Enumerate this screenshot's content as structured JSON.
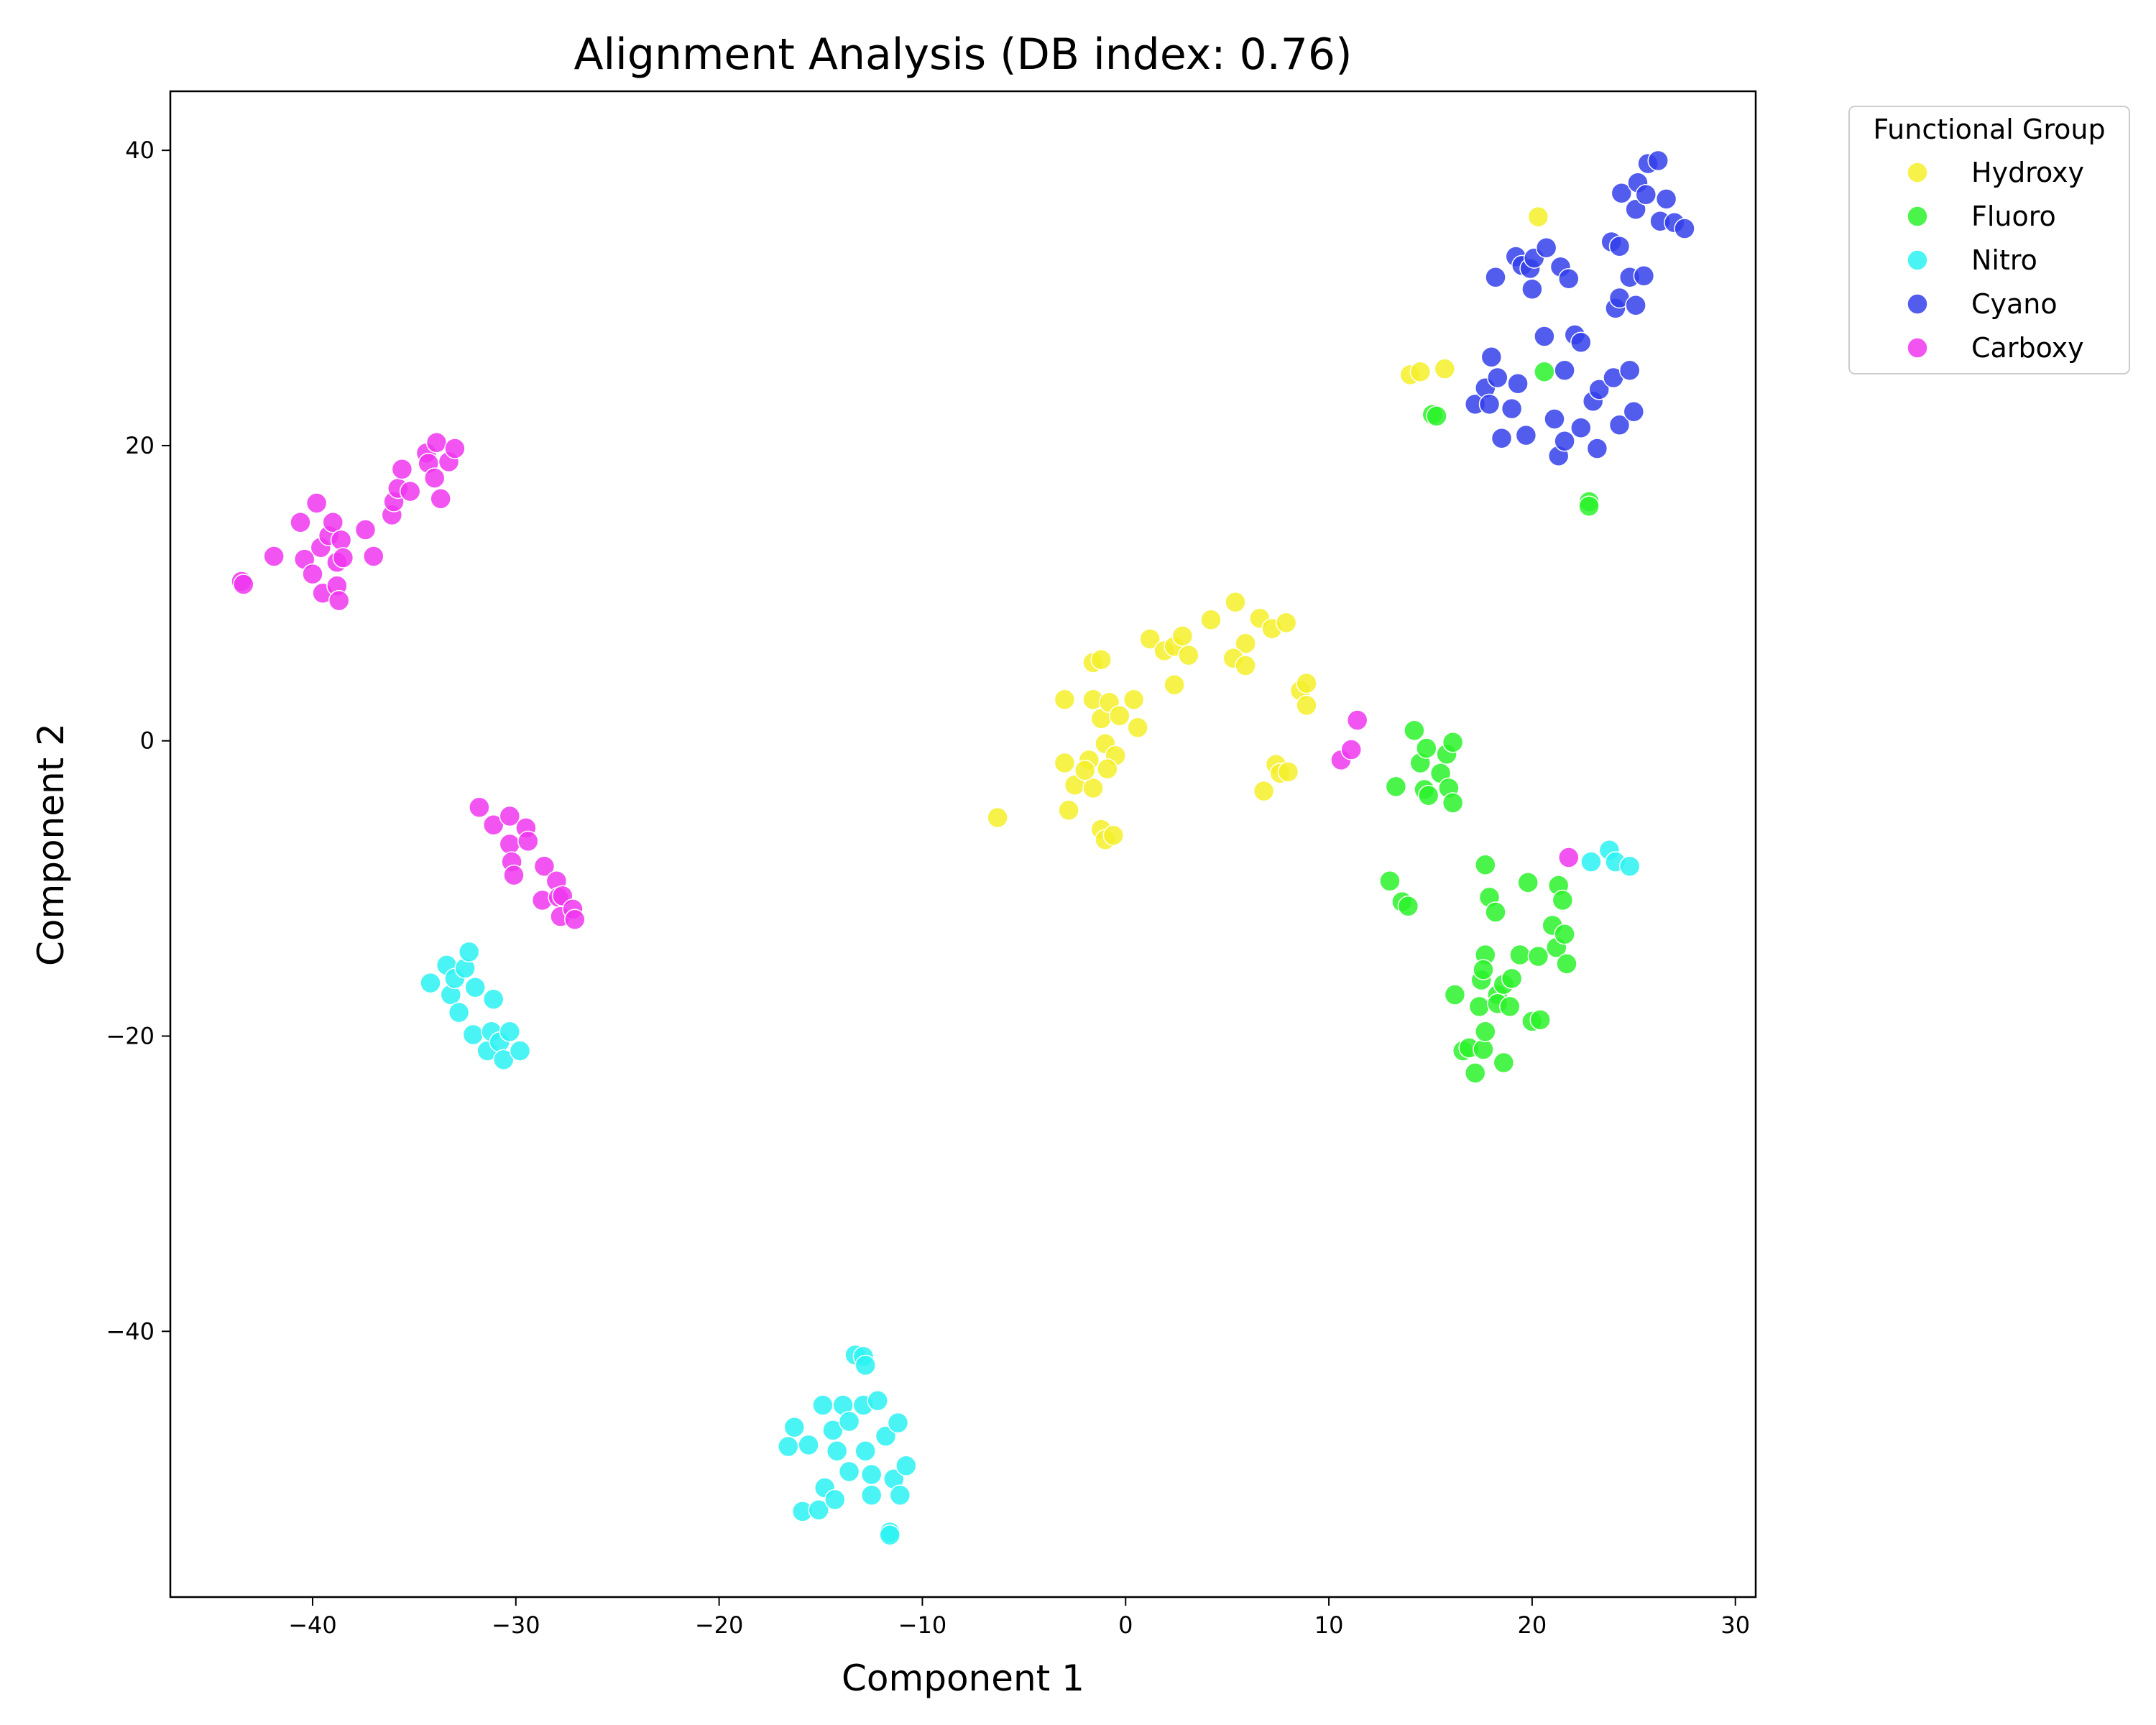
{
  "chart_data": {
    "type": "scatter",
    "title": "Alignment Analysis (DB index: 0.76)",
    "xlabel": "Component 1",
    "ylabel": "Component 2",
    "xlim": [
      -47,
      31
    ],
    "ylim": [
      -58,
      44
    ],
    "xticks": [
      -40,
      -30,
      -20,
      -10,
      0,
      10,
      20,
      30
    ],
    "yticks": [
      -40,
      -20,
      0,
      20,
      40
    ],
    "xtick_labels": [
      "−40",
      "−30",
      "−20",
      "−10",
      "0",
      "10",
      "20",
      "30"
    ],
    "ytick_labels": [
      "−40",
      "−20",
      "0",
      "20",
      "40"
    ],
    "grid": false,
    "legend": {
      "title": "Functional Group",
      "placement": "outside-top-right"
    },
    "series": [
      {
        "name": "Hydroxy",
        "color": "#f5f02a",
        "points": [
          [
            -6.3,
            -5.2
          ],
          [
            -3,
            2.8
          ],
          [
            -3,
            -1.5
          ],
          [
            -2.8,
            -4.7
          ],
          [
            -2.5,
            -3
          ],
          [
            -1.8,
            -1.3
          ],
          [
            -1.6,
            -3.2
          ],
          [
            -2.0,
            -2.0
          ],
          [
            -1.6,
            5.3
          ],
          [
            -1.2,
            5.5
          ],
          [
            -1.6,
            2.8
          ],
          [
            -1.2,
            1.5
          ],
          [
            -0.8,
            2.6
          ],
          [
            -1.0,
            -0.2
          ],
          [
            -0.5,
            -1.0
          ],
          [
            -0.9,
            -1.9
          ],
          [
            -1.2,
            -6.0
          ],
          [
            -1.0,
            -6.7
          ],
          [
            -0.6,
            -6.4
          ],
          [
            -0.3,
            1.7
          ],
          [
            0.4,
            2.8
          ],
          [
            0.6,
            0.9
          ],
          [
            1.2,
            6.9
          ],
          [
            1.9,
            6.1
          ],
          [
            2.4,
            6.4
          ],
          [
            2.8,
            7.1
          ],
          [
            2.4,
            3.8
          ],
          [
            3.1,
            5.8
          ],
          [
            4.2,
            8.2
          ],
          [
            5.4,
            9.4
          ],
          [
            5.9,
            6.6
          ],
          [
            5.3,
            5.6
          ],
          [
            5.9,
            5.1
          ],
          [
            6.6,
            8.3
          ],
          [
            6.8,
            -3.4
          ],
          [
            7.2,
            7.6
          ],
          [
            7.4,
            -1.6
          ],
          [
            7.6,
            -2.2
          ],
          [
            7.9,
            8.0
          ],
          [
            8.0,
            -2.1
          ],
          [
            8.6,
            3.4
          ],
          [
            8.9,
            3.9
          ],
          [
            8.9,
            2.4
          ],
          [
            14.0,
            24.8
          ],
          [
            14.5,
            25.0
          ],
          [
            15.7,
            25.2
          ],
          [
            20.3,
            35.5
          ]
        ]
      },
      {
        "name": "Fluoro",
        "color": "#2cf22c",
        "points": [
          [
            13.0,
            -9.5
          ],
          [
            13.3,
            -3.1
          ],
          [
            13.6,
            -10.9
          ],
          [
            13.9,
            -11.2
          ],
          [
            14.2,
            0.7
          ],
          [
            14.5,
            -1.5
          ],
          [
            14.7,
            -3.3
          ],
          [
            14.8,
            -0.5
          ],
          [
            14.9,
            -3.7
          ],
          [
            15.1,
            22.1
          ],
          [
            15.3,
            22.0
          ],
          [
            15.5,
            -2.2
          ],
          [
            15.8,
            -0.9
          ],
          [
            15.9,
            -3.2
          ],
          [
            16.1,
            -4.2
          ],
          [
            16.1,
            -0.1
          ],
          [
            16.2,
            -17.2
          ],
          [
            16.6,
            -21.0
          ],
          [
            16.9,
            -20.8
          ],
          [
            17.2,
            -22.5
          ],
          [
            17.4,
            -18.0
          ],
          [
            17.5,
            -16.2
          ],
          [
            17.6,
            -20.9
          ],
          [
            17.7,
            -19.7
          ],
          [
            17.7,
            -14.5
          ],
          [
            17.7,
            -8.4
          ],
          [
            17.9,
            -10.6
          ],
          [
            17.6,
            -15.5
          ],
          [
            18.2,
            -11.6
          ],
          [
            18.3,
            -17.2
          ],
          [
            18.3,
            -17.8
          ],
          [
            18.6,
            -16.5
          ],
          [
            18.6,
            -21.8
          ],
          [
            18.9,
            -18.0
          ],
          [
            19.0,
            -16.1
          ],
          [
            19.4,
            -14.5
          ],
          [
            19.8,
            -9.6
          ],
          [
            20.0,
            -19.0
          ],
          [
            20.3,
            -14.6
          ],
          [
            20.4,
            -18.9
          ],
          [
            20.6,
            25.0
          ],
          [
            21.0,
            -12.5
          ],
          [
            21.2,
            -14.0
          ],
          [
            21.3,
            -9.8
          ],
          [
            21.5,
            -10.8
          ],
          [
            21.6,
            -13.1
          ],
          [
            21.7,
            -15.1
          ],
          [
            22.8,
            16.2
          ],
          [
            22.8,
            15.9
          ]
        ]
      },
      {
        "name": "Nitro",
        "color": "#2cf2f2",
        "points": [
          [
            -34.2,
            -16.4
          ],
          [
            -33.4,
            -15.2
          ],
          [
            -33.2,
            -17.2
          ],
          [
            -33.0,
            -16.1
          ],
          [
            -32.8,
            -18.4
          ],
          [
            -32.5,
            -15.4
          ],
          [
            -32.3,
            -14.3
          ],
          [
            -32.1,
            -19.9
          ],
          [
            -32.0,
            -16.7
          ],
          [
            -31.4,
            -21.0
          ],
          [
            -31.1,
            -17.5
          ],
          [
            -31.2,
            -19.7
          ],
          [
            -30.8,
            -20.4
          ],
          [
            -30.6,
            -21.6
          ],
          [
            -30.3,
            -19.7
          ],
          [
            -29.8,
            -21.0
          ],
          [
            -16.6,
            -47.8
          ],
          [
            -16.3,
            -46.5
          ],
          [
            -15.9,
            -52.2
          ],
          [
            -15.6,
            -47.7
          ],
          [
            -15.1,
            -52.1
          ],
          [
            -14.9,
            -45.0
          ],
          [
            -14.8,
            -50.6
          ],
          [
            -14.4,
            -46.7
          ],
          [
            -14.2,
            -48.1
          ],
          [
            -14.3,
            -51.4
          ],
          [
            -13.9,
            -45.0
          ],
          [
            -13.6,
            -49.5
          ],
          [
            -13.6,
            -46.1
          ],
          [
            -13.3,
            -41.6
          ],
          [
            -12.9,
            -45.0
          ],
          [
            -12.9,
            -41.7
          ],
          [
            -12.8,
            -42.3
          ],
          [
            -12.8,
            -48.1
          ],
          [
            -12.5,
            -49.7
          ],
          [
            -12.5,
            -51.1
          ],
          [
            -12.2,
            -44.7
          ],
          [
            -11.8,
            -47.1
          ],
          [
            -11.6,
            -53.6
          ],
          [
            -11.6,
            -53.8
          ],
          [
            -11.4,
            -50.0
          ],
          [
            -11.2,
            -46.2
          ],
          [
            -11.1,
            -51.1
          ],
          [
            -10.8,
            -49.1
          ],
          [
            22.9,
            -8.2
          ],
          [
            23.8,
            -7.4
          ],
          [
            24.1,
            -8.2
          ],
          [
            24.8,
            -8.5
          ]
        ]
      },
      {
        "name": "Cyano",
        "color": "#3440ea",
        "points": [
          [
            17.2,
            22.8
          ],
          [
            17.7,
            23.9
          ],
          [
            17.9,
            22.8
          ],
          [
            18.0,
            26.0
          ],
          [
            18.2,
            31.4
          ],
          [
            18.3,
            24.6
          ],
          [
            18.5,
            20.5
          ],
          [
            19.0,
            22.5
          ],
          [
            19.2,
            32.8
          ],
          [
            19.3,
            24.2
          ],
          [
            19.5,
            32.2
          ],
          [
            19.7,
            20.7
          ],
          [
            19.9,
            32.0
          ],
          [
            20.0,
            30.6
          ],
          [
            20.1,
            32.7
          ],
          [
            20.6,
            27.4
          ],
          [
            20.7,
            33.4
          ],
          [
            21.1,
            21.8
          ],
          [
            21.3,
            19.3
          ],
          [
            21.4,
            32.1
          ],
          [
            21.6,
            20.3
          ],
          [
            21.6,
            25.1
          ],
          [
            21.8,
            31.3
          ],
          [
            22.1,
            27.5
          ],
          [
            22.4,
            27.0
          ],
          [
            22.4,
            21.2
          ],
          [
            23.0,
            23.0
          ],
          [
            23.2,
            19.8
          ],
          [
            23.3,
            23.8
          ],
          [
            23.9,
            33.8
          ],
          [
            24.0,
            24.6
          ],
          [
            24.1,
            29.3
          ],
          [
            24.3,
            33.5
          ],
          [
            24.3,
            21.4
          ],
          [
            24.3,
            30.0
          ],
          [
            24.4,
            37.1
          ],
          [
            24.8,
            31.4
          ],
          [
            24.8,
            25.1
          ],
          [
            25.0,
            22.3
          ],
          [
            25.1,
            29.5
          ],
          [
            25.1,
            36.0
          ],
          [
            25.2,
            37.8
          ],
          [
            25.5,
            31.5
          ],
          [
            25.6,
            37.0
          ],
          [
            25.7,
            39.1
          ],
          [
            26.2,
            39.3
          ],
          [
            26.3,
            35.2
          ],
          [
            26.6,
            36.7
          ],
          [
            27.0,
            35.1
          ],
          [
            27.5,
            34.7
          ]
        ]
      },
      {
        "name": "Carboxy",
        "color": "#ef36ef",
        "points": [
          [
            -43.5,
            10.8
          ],
          [
            -43.4,
            10.6
          ],
          [
            -41.9,
            12.5
          ],
          [
            -40.6,
            14.8
          ],
          [
            -40.4,
            12.3
          ],
          [
            -40.0,
            11.3
          ],
          [
            -39.8,
            16.1
          ],
          [
            -39.6,
            13.1
          ],
          [
            -39.5,
            10.0
          ],
          [
            -39.2,
            13.9
          ],
          [
            -39.0,
            14.8
          ],
          [
            -38.8,
            12.1
          ],
          [
            -38.8,
            10.5
          ],
          [
            -38.7,
            9.5
          ],
          [
            -38.6,
            13.6
          ],
          [
            -38.5,
            12.4
          ],
          [
            -37.4,
            14.3
          ],
          [
            -37.0,
            12.5
          ],
          [
            -36.1,
            15.3
          ],
          [
            -36.0,
            16.2
          ],
          [
            -35.8,
            17.1
          ],
          [
            -35.6,
            18.4
          ],
          [
            -35.2,
            16.9
          ],
          [
            -34.4,
            19.5
          ],
          [
            -34.3,
            18.8
          ],
          [
            -34.0,
            17.8
          ],
          [
            -33.9,
            20.2
          ],
          [
            -33.7,
            16.4
          ],
          [
            -33.3,
            18.9
          ],
          [
            -33.0,
            19.8
          ],
          [
            -31.8,
            -4.5
          ],
          [
            -31.1,
            -5.7
          ],
          [
            -30.3,
            -5.1
          ],
          [
            -30.3,
            -7.0
          ],
          [
            -30.2,
            -8.2
          ],
          [
            -30.1,
            -9.1
          ],
          [
            -29.5,
            -5.9
          ],
          [
            -29.4,
            -6.8
          ],
          [
            -28.7,
            -10.8
          ],
          [
            -28.6,
            -8.5
          ],
          [
            -28.0,
            -9.5
          ],
          [
            -27.9,
            -10.6
          ],
          [
            -27.8,
            -11.9
          ],
          [
            -27.7,
            -10.5
          ],
          [
            -27.2,
            -11.4
          ],
          [
            -27.1,
            -12.1
          ],
          [
            10.6,
            -1.3
          ],
          [
            11.1,
            -0.6
          ],
          [
            11.4,
            1.4
          ],
          [
            21.8,
            -7.9
          ]
        ]
      }
    ]
  }
}
